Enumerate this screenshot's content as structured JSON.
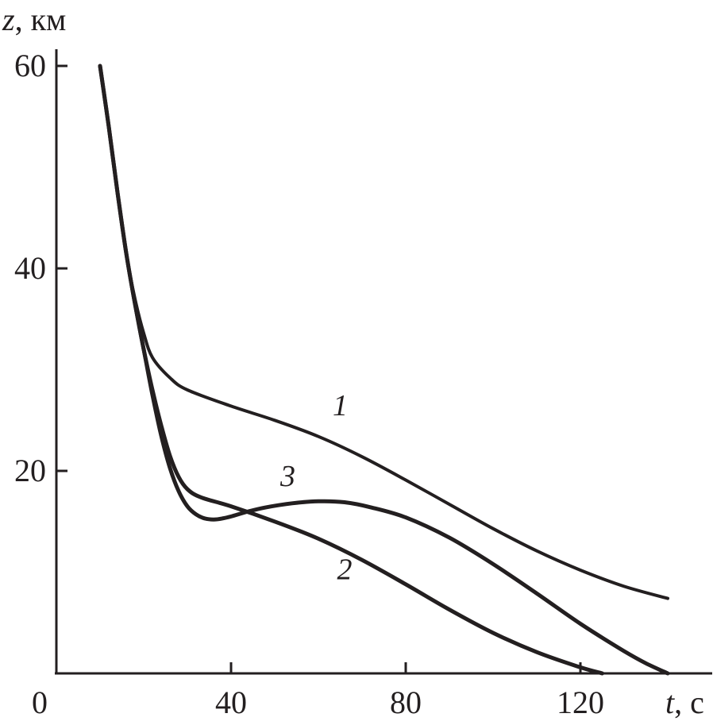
{
  "chart_data": {
    "type": "line",
    "title": "",
    "xlabel": {
      "var": "t",
      "unit": ", с"
    },
    "ylabel": {
      "var": "z",
      "unit": ", км"
    },
    "xlim": [
      0,
      150
    ],
    "ylim": [
      0,
      60
    ],
    "x_ticks": [
      {
        "value": 0,
        "label": "0"
      },
      {
        "value": 40,
        "label": "40"
      },
      {
        "value": 80,
        "label": "80"
      },
      {
        "value": 120,
        "label": "120"
      }
    ],
    "y_ticks": [
      {
        "value": 20,
        "label": "20"
      },
      {
        "value": 40,
        "label": "40"
      },
      {
        "value": 60,
        "label": "60"
      }
    ],
    "grid": false,
    "series": [
      {
        "name": "1",
        "label_at": [
          65,
          25.5
        ],
        "width": 4,
        "points": [
          [
            10,
            60
          ],
          [
            12,
            54
          ],
          [
            14,
            47.5
          ],
          [
            16,
            41.5
          ],
          [
            18,
            37
          ],
          [
            20,
            33.6
          ],
          [
            22,
            31.2
          ],
          [
            26,
            29.2
          ],
          [
            30,
            28
          ],
          [
            40,
            26.4
          ],
          [
            50,
            25
          ],
          [
            60,
            23.4
          ],
          [
            70,
            21.4
          ],
          [
            80,
            19.1
          ],
          [
            90,
            16.7
          ],
          [
            100,
            14.3
          ],
          [
            110,
            12.1
          ],
          [
            120,
            10.2
          ],
          [
            130,
            8.6
          ],
          [
            140,
            7.4
          ]
        ]
      },
      {
        "name": "2",
        "label_at": [
          66,
          9.3
        ],
        "width": 5,
        "points": [
          [
            10,
            60
          ],
          [
            12,
            54
          ],
          [
            14,
            47.5
          ],
          [
            16,
            41.5
          ],
          [
            18,
            36.5
          ],
          [
            20,
            32
          ],
          [
            22,
            28
          ],
          [
            24,
            24.5
          ],
          [
            26,
            21.5
          ],
          [
            28,
            19.4
          ],
          [
            30,
            18.2
          ],
          [
            33,
            17.4
          ],
          [
            40,
            16.5
          ],
          [
            50,
            15
          ],
          [
            60,
            13.3
          ],
          [
            70,
            11.2
          ],
          [
            80,
            8.8
          ],
          [
            90,
            6.3
          ],
          [
            100,
            4
          ],
          [
            110,
            2.1
          ],
          [
            120,
            0.6
          ],
          [
            125,
            0
          ]
        ]
      },
      {
        "name": "3",
        "label_at": [
          53,
          18.5
        ],
        "width": 5,
        "points": [
          [
            10,
            60
          ],
          [
            12,
            54
          ],
          [
            14,
            47.5
          ],
          [
            16,
            41.5
          ],
          [
            18,
            36.5
          ],
          [
            20,
            32
          ],
          [
            22,
            27.5
          ],
          [
            24,
            23.5
          ],
          [
            26,
            20.3
          ],
          [
            28,
            18
          ],
          [
            30,
            16.5
          ],
          [
            32,
            15.7
          ],
          [
            34,
            15.3
          ],
          [
            36,
            15.2
          ],
          [
            38,
            15.3
          ],
          [
            40,
            15.5
          ],
          [
            44,
            16
          ],
          [
            48,
            16.4
          ],
          [
            54,
            16.8
          ],
          [
            60,
            17
          ],
          [
            66,
            16.9
          ],
          [
            72,
            16.4
          ],
          [
            80,
            15.4
          ],
          [
            90,
            13.4
          ],
          [
            100,
            10.8
          ],
          [
            110,
            7.9
          ],
          [
            120,
            4.9
          ],
          [
            130,
            2.2
          ],
          [
            135,
            1
          ],
          [
            140,
            0
          ]
        ]
      }
    ]
  }
}
